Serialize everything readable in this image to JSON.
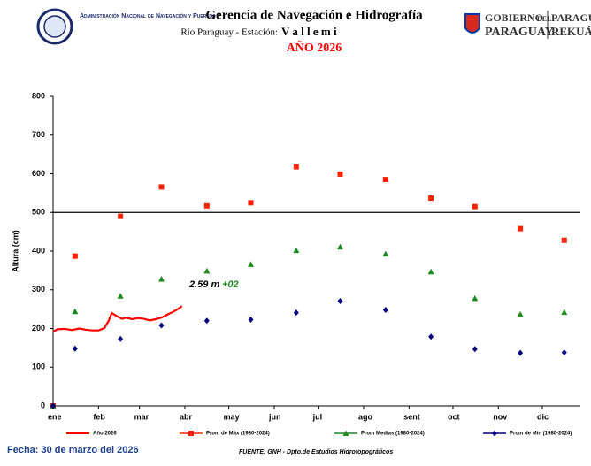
{
  "header": {
    "org": "Administración Nacional de Navegación y Puertos",
    "title": "Gerencia de Navegación e Hidrografía",
    "station_prefix": "Río Paraguay  -  Estación:",
    "station": "V a l l e m i",
    "year": "AÑO 2026",
    "gov_1": "GOBIERNO",
    "gov_2": "DEL",
    "gov_3": "PARAGUAY",
    "gov_4": "PARAGUÁI",
    "gov_5": "REKUÁI"
  },
  "chart_data": {
    "type": "combo",
    "ylabel": "Altura (cm)",
    "xlim": [
      0,
      360
    ],
    "ylim": [
      0,
      800
    ],
    "yticks": [
      0,
      100,
      200,
      300,
      400,
      500,
      600,
      700,
      800
    ],
    "xticks": [
      {
        "value": 0,
        "label": "ene"
      },
      {
        "value": 31,
        "label": "feb"
      },
      {
        "value": 59,
        "label": "mar"
      },
      {
        "value": 90,
        "label": "abr"
      },
      {
        "value": 120,
        "label": "may"
      },
      {
        "value": 151,
        "label": "jun"
      },
      {
        "value": 181,
        "label": "jul"
      },
      {
        "value": 212,
        "label": "ago"
      },
      {
        "value": 243,
        "label": "sent"
      },
      {
        "value": 273,
        "label": "oct"
      },
      {
        "value": 304,
        "label": "nov"
      },
      {
        "value": 334,
        "label": "dic"
      }
    ],
    "ref_line": 500,
    "annotation": "2.59 m",
    "annotation_delta": "+02",
    "series": [
      {
        "name": "Año 2026",
        "type": "line",
        "color": "#ff0000",
        "x": [
          0,
          3,
          8,
          13,
          18,
          22,
          27,
          31,
          35,
          38,
          40,
          43,
          47,
          50,
          54,
          58,
          62,
          66,
          70,
          74,
          78,
          82,
          86,
          88
        ],
        "values": [
          192,
          198,
          199,
          196,
          200,
          197,
          195,
          195,
          201,
          220,
          240,
          233,
          225,
          228,
          224,
          227,
          225,
          221,
          224,
          228,
          236,
          243,
          252,
          258
        ]
      },
      {
        "name": "Prom de Máx (1980-2024)",
        "type": "square",
        "color": "#ff2200",
        "x": [
          0,
          15,
          46,
          74,
          105,
          135,
          166,
          196,
          227,
          258,
          288,
          319,
          349
        ],
        "values": [
          0,
          387,
          490,
          566,
          517,
          525,
          618,
          599,
          585,
          537,
          515,
          458,
          428
        ]
      },
      {
        "name": "Prom Medias (1980-2024)",
        "type": "triangle",
        "color": "#1a8a1a",
        "x": [
          0,
          15,
          46,
          74,
          105,
          135,
          166,
          196,
          227,
          258,
          288,
          319,
          349
        ],
        "values": [
          0,
          244,
          284,
          328,
          349,
          366,
          402,
          411,
          393,
          347,
          278,
          237,
          242
        ]
      },
      {
        "name": "Prom de Mín  (1980-2024)",
        "type": "diamond",
        "color": "#000080",
        "x": [
          0,
          15,
          46,
          74,
          105,
          135,
          166,
          196,
          227,
          258,
          288,
          319,
          349
        ],
        "values": [
          0,
          148,
          173,
          208,
          220,
          223,
          241,
          271,
          248,
          179,
          147,
          137,
          138
        ]
      }
    ]
  },
  "footer": {
    "date": "Fecha: 30 de marzo del 2026",
    "source": "FUENTE: GNH - Dpto.de Estudios Hidrotopográficos"
  }
}
